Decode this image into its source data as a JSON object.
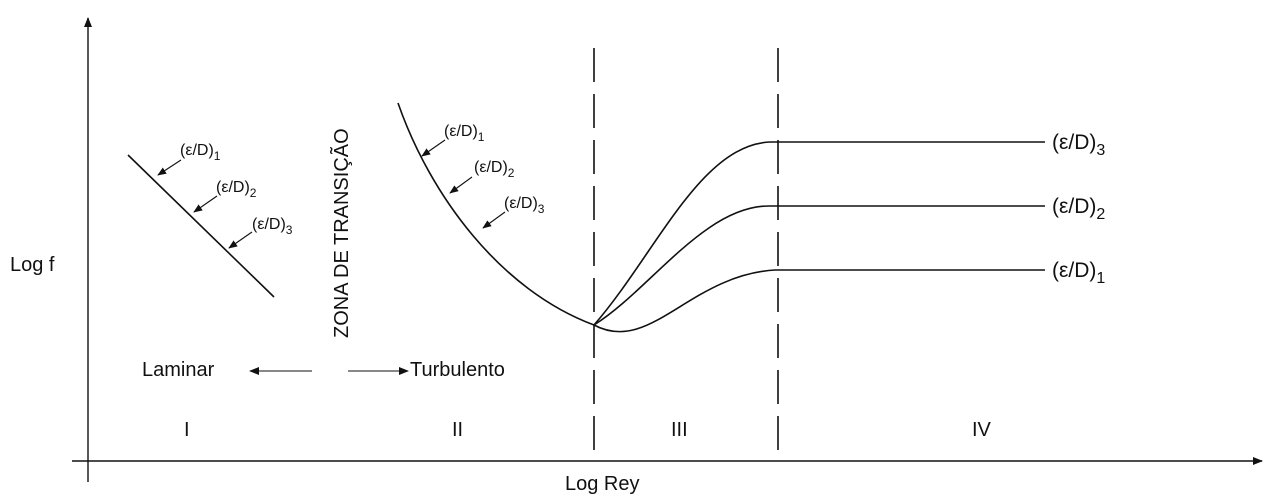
{
  "axes": {
    "x_label": "Log Rey",
    "y_label": "Log f"
  },
  "transition_zone_label": "ZONA DE TRANSIÇÃO",
  "flow_regimes": {
    "laminar": "Laminar",
    "turbulent": "Turbulento"
  },
  "regions": [
    "I",
    "II",
    "III",
    "IV"
  ],
  "roughness": {
    "base": "(ε/D)",
    "subscripts": [
      "1",
      "2",
      "3"
    ]
  },
  "colors": {
    "ink": "#111111",
    "background": "#ffffff"
  }
}
